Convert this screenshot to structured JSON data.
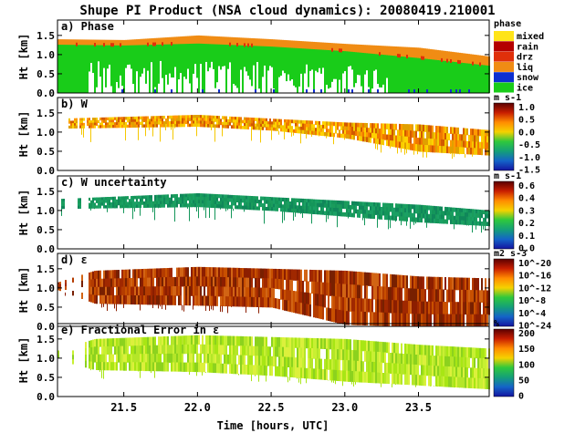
{
  "title": "Shupe PI Product (NSA cloud dynamics): 20080419.210001",
  "colors": {
    "phase": {
      "ice": "#19cc19",
      "snow": "#0d2fd0",
      "liq": "#f08c14",
      "drz": "#e0300a",
      "rain": "#b40000",
      "mixed": "#ffe419"
    }
  },
  "chart_data": [
    {
      "type": "heatmap",
      "panel": "a) Phase",
      "ylabel": "Ht [km]",
      "yticks": [
        "0.0",
        "0.5",
        "1.0",
        "1.5"
      ],
      "ylim": [
        0,
        1.9
      ],
      "xlim": [
        21.05,
        23.98
      ],
      "legend_title": "phase",
      "legend": [
        "mixed",
        "rain",
        "drz",
        "liq",
        "snow",
        "ice"
      ],
      "layers": {
        "liquid_top_km": [
          [
            21.05,
            1.4
          ],
          [
            21.5,
            1.38
          ],
          [
            22.0,
            1.5
          ],
          [
            22.5,
            1.4
          ],
          [
            23.0,
            1.28
          ],
          [
            23.5,
            1.18
          ],
          [
            23.98,
            0.95
          ]
        ],
        "liquid_base_km": [
          [
            21.05,
            1.27
          ],
          [
            21.5,
            1.25
          ],
          [
            22.0,
            1.3
          ],
          [
            22.5,
            1.22
          ],
          [
            23.0,
            1.1
          ],
          [
            23.5,
            0.92
          ],
          [
            23.98,
            0.72
          ]
        ],
        "ice_base_km": [
          [
            21.05,
            0.0
          ],
          [
            23.98,
            0.0
          ]
        ]
      }
    },
    {
      "type": "heatmap",
      "panel": "b) W",
      "ylabel": "Ht [km]",
      "yticks": [
        "0.0",
        "0.5",
        "1.0",
        "1.5"
      ],
      "ylim": [
        0,
        1.9
      ],
      "colorbar_title": "m s-1",
      "colorbar_ticks": [
        "1.0",
        "0.5",
        "0.0",
        "-0.5",
        "-1.0",
        "-1.5"
      ],
      "layers": {
        "cloud_top_km": [
          [
            21.05,
            1.35
          ],
          [
            22.0,
            1.45
          ],
          [
            22.5,
            1.35
          ],
          [
            23.0,
            1.25
          ],
          [
            23.5,
            1.2
          ],
          [
            23.98,
            1.05
          ]
        ],
        "cloud_base_km": [
          [
            21.05,
            1.1
          ],
          [
            22.0,
            1.15
          ],
          [
            22.5,
            1.05
          ],
          [
            23.0,
            0.85
          ],
          [
            23.5,
            0.5
          ],
          [
            23.98,
            0.4
          ]
        ]
      }
    },
    {
      "type": "heatmap",
      "panel": "c) W uncertainty",
      "ylabel": "Ht [km]",
      "yticks": [
        "0.0",
        "0.5",
        "1.0",
        "1.5"
      ],
      "ylim": [
        0,
        1.9
      ],
      "colorbar_title": "m s-1",
      "colorbar_ticks": [
        "0.6",
        "0.4",
        "0.3",
        "0.2",
        "0.1",
        "0.0"
      ],
      "layers": {
        "cloud_top_km": [
          [
            21.05,
            1.3
          ],
          [
            22.0,
            1.45
          ],
          [
            22.5,
            1.35
          ],
          [
            23.0,
            1.25
          ],
          [
            23.5,
            1.15
          ],
          [
            23.98,
            1.0
          ]
        ],
        "cloud_base_km": [
          [
            21.05,
            1.05
          ],
          [
            22.0,
            1.1
          ],
          [
            22.5,
            1.0
          ],
          [
            23.0,
            0.85
          ],
          [
            23.5,
            0.7
          ],
          [
            23.98,
            0.6
          ]
        ]
      }
    },
    {
      "type": "heatmap",
      "panel": "d) ε",
      "ylabel": "Ht [km]",
      "yticks": [
        "0.0",
        "0.5",
        "1.0",
        "1.5"
      ],
      "ylim": [
        0,
        1.9
      ],
      "colorbar_title": "m2 s-3",
      "colorbar_ticks": [
        "10^-20",
        "10^-16",
        "10^-12",
        "10^-8",
        "10^-4",
        "10^-24"
      ],
      "layers": {
        "cloud_top_km": [
          [
            21.05,
            1.15
          ],
          [
            21.3,
            1.45
          ],
          [
            22.0,
            1.55
          ],
          [
            22.5,
            1.5
          ],
          [
            23.0,
            1.45
          ],
          [
            23.5,
            1.3
          ],
          [
            23.98,
            1.25
          ]
        ],
        "cloud_base_km": [
          [
            21.05,
            0.95
          ],
          [
            21.3,
            0.6
          ],
          [
            22.0,
            0.55
          ],
          [
            22.5,
            0.5
          ],
          [
            23.0,
            0.05
          ],
          [
            23.5,
            0.0
          ],
          [
            23.98,
            0.0
          ]
        ]
      }
    },
    {
      "type": "heatmap",
      "panel": "e) Fractional Error in ε",
      "ylabel": "Ht [km]",
      "yticks": [
        "0.0",
        "0.5",
        "1.0",
        "1.5"
      ],
      "ylim": [
        0,
        1.9
      ],
      "xlabel": "Time [hours, UTC]",
      "xticks": [
        21.5,
        22.0,
        22.5,
        23.0,
        23.5
      ],
      "xticklabels": [
        "21.5",
        "22.0",
        "22.5",
        "23.0",
        "23.5"
      ],
      "colorbar_title": "%",
      "colorbar_ticks": [
        "200",
        "150",
        "100",
        "50",
        "0"
      ],
      "layers": {
        "cloud_top_km": [
          [
            21.05,
            1.2
          ],
          [
            21.3,
            1.5
          ],
          [
            22.0,
            1.6
          ],
          [
            22.5,
            1.55
          ],
          [
            23.0,
            1.5
          ],
          [
            23.5,
            1.35
          ],
          [
            23.98,
            1.25
          ]
        ],
        "cloud_base_km": [
          [
            21.05,
            0.95
          ],
          [
            21.3,
            0.7
          ],
          [
            22.0,
            0.65
          ],
          [
            22.5,
            0.55
          ],
          [
            23.0,
            0.4
          ],
          [
            23.5,
            0.3
          ],
          [
            23.98,
            0.2
          ]
        ]
      }
    }
  ]
}
